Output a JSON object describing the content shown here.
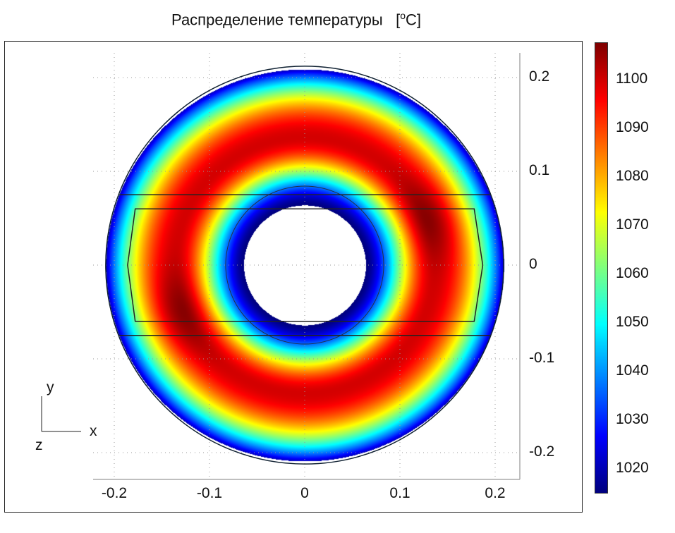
{
  "chart_data": {
    "type": "heatmap",
    "title": "Распределение температуры",
    "unit_prefix": "[",
    "unit_sup": "o",
    "unit_suffix": "C]",
    "x_ticks": [
      "-0.2",
      "-0.1",
      "0",
      "0.1",
      "0.2"
    ],
    "x_tick_values": [
      -0.2,
      -0.1,
      0,
      0.1,
      0.2
    ],
    "y_ticks": [
      "0.2",
      "0.1",
      "0",
      "-0.1",
      "-0.2"
    ],
    "y_tick_values": [
      0.2,
      0.1,
      0,
      -0.1,
      -0.2
    ],
    "xlim": [
      -0.22,
      0.225
    ],
    "ylim": [
      -0.23,
      0.225
    ],
    "grid": true,
    "geometry": {
      "outer_radius": 0.209,
      "inner_radius": 0.064,
      "ring_radius": 0.083,
      "band_y": [
        0.075,
        -0.075
      ],
      "band_x": [
        -0.195,
        0.195
      ],
      "hex_y": [
        0.06,
        -0.06
      ],
      "hex_x_flat": [
        -0.178,
        0.178
      ],
      "hex_x_tip": [
        -0.186,
        0.187
      ]
    },
    "field": {
      "min_at_inner_edge": 1015,
      "peak": 1100,
      "outer_edge": 1020,
      "hot_spots": [
        [
          -0.13,
          -0.05,
          1107
        ],
        [
          0.13,
          0.05,
          1107
        ]
      ]
    },
    "colorbar": {
      "colormap": "jet",
      "range": [
        1015,
        1107.7
      ],
      "ticks": [
        "1100",
        "1090",
        "1080",
        "1070",
        "1060",
        "1050",
        "1040",
        "1030",
        "1020"
      ],
      "tick_values": [
        1100,
        1090,
        1080,
        1070,
        1060,
        1050,
        1040,
        1030,
        1020
      ]
    },
    "triad": {
      "x": "x",
      "y": "y",
      "z": "z"
    }
  }
}
